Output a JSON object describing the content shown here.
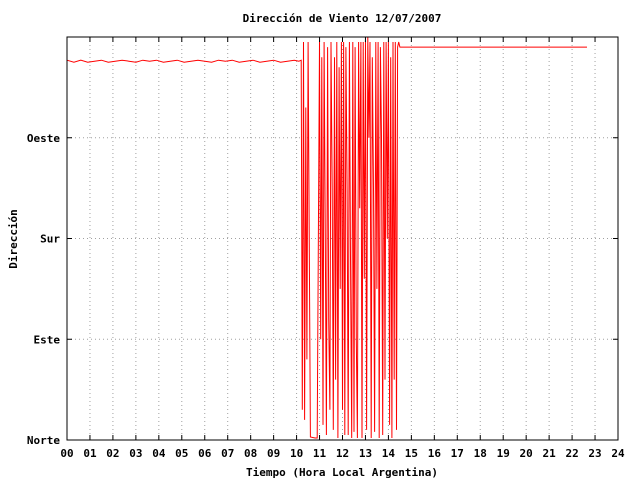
{
  "chart_data": {
    "type": "line",
    "title": "Dirección de Viento 12/07/2007",
    "xlabel": "Tiempo (Hora Local Argentina)",
    "ylabel": "Dirección",
    "xlim": [
      0,
      24
    ],
    "ylim": [
      0,
      400
    ],
    "x_ticks": [
      "00",
      "01",
      "02",
      "03",
      "04",
      "05",
      "06",
      "07",
      "08",
      "09",
      "10",
      "11",
      "12",
      "13",
      "14",
      "15",
      "16",
      "17",
      "18",
      "19",
      "20",
      "21",
      "22",
      "23",
      "24"
    ],
    "y_ticks": [
      {
        "value": 0,
        "label": "Norte"
      },
      {
        "value": 100,
        "label": "Este"
      },
      {
        "value": 200,
        "label": "Sur"
      },
      {
        "value": 300,
        "label": "Oeste"
      }
    ],
    "grid": true,
    "line_color": "#ff0000",
    "series": [
      {
        "x": [
          0.0,
          0.3,
          0.6,
          0.9,
          1.2,
          1.5,
          1.8,
          2.1,
          2.4,
          2.7,
          3.0,
          3.3,
          3.6,
          3.9,
          4.2,
          4.5,
          4.8,
          5.1,
          5.4,
          5.7,
          6.0,
          6.3,
          6.6,
          6.9,
          7.2,
          7.5,
          7.8,
          8.1,
          8.4,
          8.7,
          9.0,
          9.3,
          9.6,
          9.9,
          10.1,
          10.2,
          10.25,
          10.3,
          10.35,
          10.4,
          10.45,
          10.5,
          10.6,
          10.8,
          10.9,
          11.0,
          11.05,
          11.1,
          11.15,
          11.2,
          11.25,
          11.3,
          11.35,
          11.4,
          11.45,
          11.5,
          11.55,
          11.6,
          11.65,
          11.7,
          11.75,
          11.8,
          11.85,
          11.9,
          11.95,
          12.0,
          12.05,
          12.1,
          12.15,
          12.2,
          12.25,
          12.3,
          12.35,
          12.4,
          12.45,
          12.5,
          12.55,
          12.6,
          12.65,
          12.7,
          12.75,
          12.8,
          12.85,
          12.9,
          12.95,
          13.0,
          13.05,
          13.1,
          13.15,
          13.2,
          13.25,
          13.3,
          13.35,
          13.4,
          13.45,
          13.5,
          13.55,
          13.6,
          13.65,
          13.7,
          13.75,
          13.8,
          13.85,
          13.9,
          13.95,
          14.0,
          14.05,
          14.1,
          14.15,
          14.2,
          14.25,
          14.3,
          14.35,
          14.4,
          14.45,
          14.5,
          22.65
        ],
        "y": [
          377,
          375,
          377,
          375,
          376,
          377,
          375,
          376,
          377,
          376,
          375,
          377,
          376,
          377,
          375,
          376,
          377,
          375,
          376,
          377,
          376,
          375,
          377,
          376,
          377,
          375,
          376,
          377,
          375,
          376,
          377,
          375,
          376,
          377,
          376,
          377,
          30,
          395,
          20,
          330,
          80,
          395,
          3,
          2,
          2,
          395,
          100,
          380,
          15,
          395,
          200,
          5,
          390,
          120,
          30,
          395,
          250,
          10,
          380,
          60,
          395,
          2,
          370,
          150,
          395,
          30,
          395,
          5,
          390,
          250,
          5,
          395,
          180,
          2,
          395,
          8,
          390,
          100,
          2,
          395,
          230,
          395,
          2,
          395,
          160,
          395,
          10,
          400,
          300,
          395,
          2,
          380,
          250,
          8,
          395,
          150,
          395,
          2,
          390,
          300,
          5,
          395,
          60,
          395,
          200,
          395,
          15,
          380,
          2,
          395,
          60,
          395,
          10,
          390,
          395,
          390,
          390
        ]
      }
    ]
  }
}
